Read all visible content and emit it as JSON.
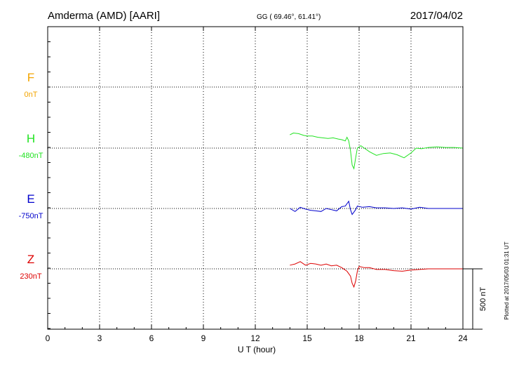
{
  "header": {
    "station": "Amderma (AMD)  [AARI]",
    "coords": "GG ( 69.46°,  61.41°)",
    "date": "2017/04/02"
  },
  "footer_note": "Plotted at 2017/05/03 01:31  UT",
  "scale_bar": {
    "label": "500 nT",
    "value_nT": 500
  },
  "colors": {
    "F": "#f2a400",
    "H": "#22e322",
    "E": "#0000cc",
    "Z": "#dd0000",
    "grid": "#000000"
  },
  "chart_data": {
    "type": "line",
    "xlabel": "U T (hour)",
    "xlim": [
      0,
      24
    ],
    "xticks": [
      0,
      3,
      6,
      9,
      12,
      15,
      18,
      21,
      24
    ],
    "tick_labels": [
      "0",
      "3",
      "6",
      "9",
      "12",
      "15",
      "18",
      "21",
      "24"
    ],
    "channels": [
      {
        "name": "F",
        "baseline": "0nT",
        "x": [],
        "y": []
      },
      {
        "name": "H",
        "baseline": "-480nT",
        "x": [
          14,
          14.2,
          14.5,
          14.8,
          15.0,
          15.3,
          15.6,
          15.9,
          16.2,
          16.5,
          16.8,
          17.0,
          17.2,
          17.3,
          17.4,
          17.5,
          17.6,
          17.7,
          17.8,
          17.9,
          18.1,
          18.3,
          18.6,
          19.0,
          19.4,
          19.8,
          20.2,
          20.6,
          21.0,
          21.3,
          21.6,
          22.0,
          22.5,
          23.0,
          23.5,
          24.0
        ],
        "y": [
          110,
          125,
          120,
          105,
          100,
          100,
          90,
          85,
          80,
          85,
          75,
          70,
          60,
          90,
          60,
          -20,
          -140,
          -170,
          -80,
          0,
          20,
          0,
          -30,
          -60,
          -45,
          -40,
          -55,
          -80,
          -40,
          0,
          -5,
          5,
          10,
          5,
          5,
          0
        ]
      },
      {
        "name": "E",
        "baseline": "-750nT",
        "x": [
          14,
          14.3,
          14.6,
          14.9,
          15.2,
          15.5,
          15.8,
          16.1,
          16.4,
          16.7,
          17.0,
          17.2,
          17.4,
          17.5,
          17.6,
          17.7,
          17.8,
          17.9,
          18.2,
          18.6,
          19.0,
          19.5,
          20.0,
          20.5,
          21.0,
          21.5,
          22.0,
          23.0,
          24.0
        ],
        "y": [
          0,
          -25,
          10,
          -5,
          -15,
          -20,
          -25,
          0,
          -10,
          -20,
          15,
          20,
          60,
          -10,
          -50,
          -30,
          -10,
          20,
          10,
          15,
          5,
          5,
          0,
          5,
          -5,
          10,
          0,
          0,
          0
        ]
      },
      {
        "name": "Z",
        "baseline": "230nT",
        "x": [
          14,
          14.3,
          14.6,
          14.9,
          15.2,
          15.5,
          15.8,
          16.1,
          16.4,
          16.7,
          17.0,
          17.3,
          17.5,
          17.6,
          17.7,
          17.8,
          17.9,
          18.0,
          18.3,
          18.6,
          19.0,
          19.5,
          20.0,
          20.5,
          21.0,
          21.5,
          22.0,
          22.5,
          23.0,
          24.0
        ],
        "y": [
          30,
          40,
          60,
          30,
          45,
          40,
          30,
          40,
          25,
          30,
          10,
          -20,
          -60,
          -120,
          -150,
          -100,
          -20,
          20,
          10,
          10,
          -5,
          -5,
          -15,
          -20,
          -10,
          -5,
          0,
          0,
          0,
          0
        ]
      }
    ]
  }
}
